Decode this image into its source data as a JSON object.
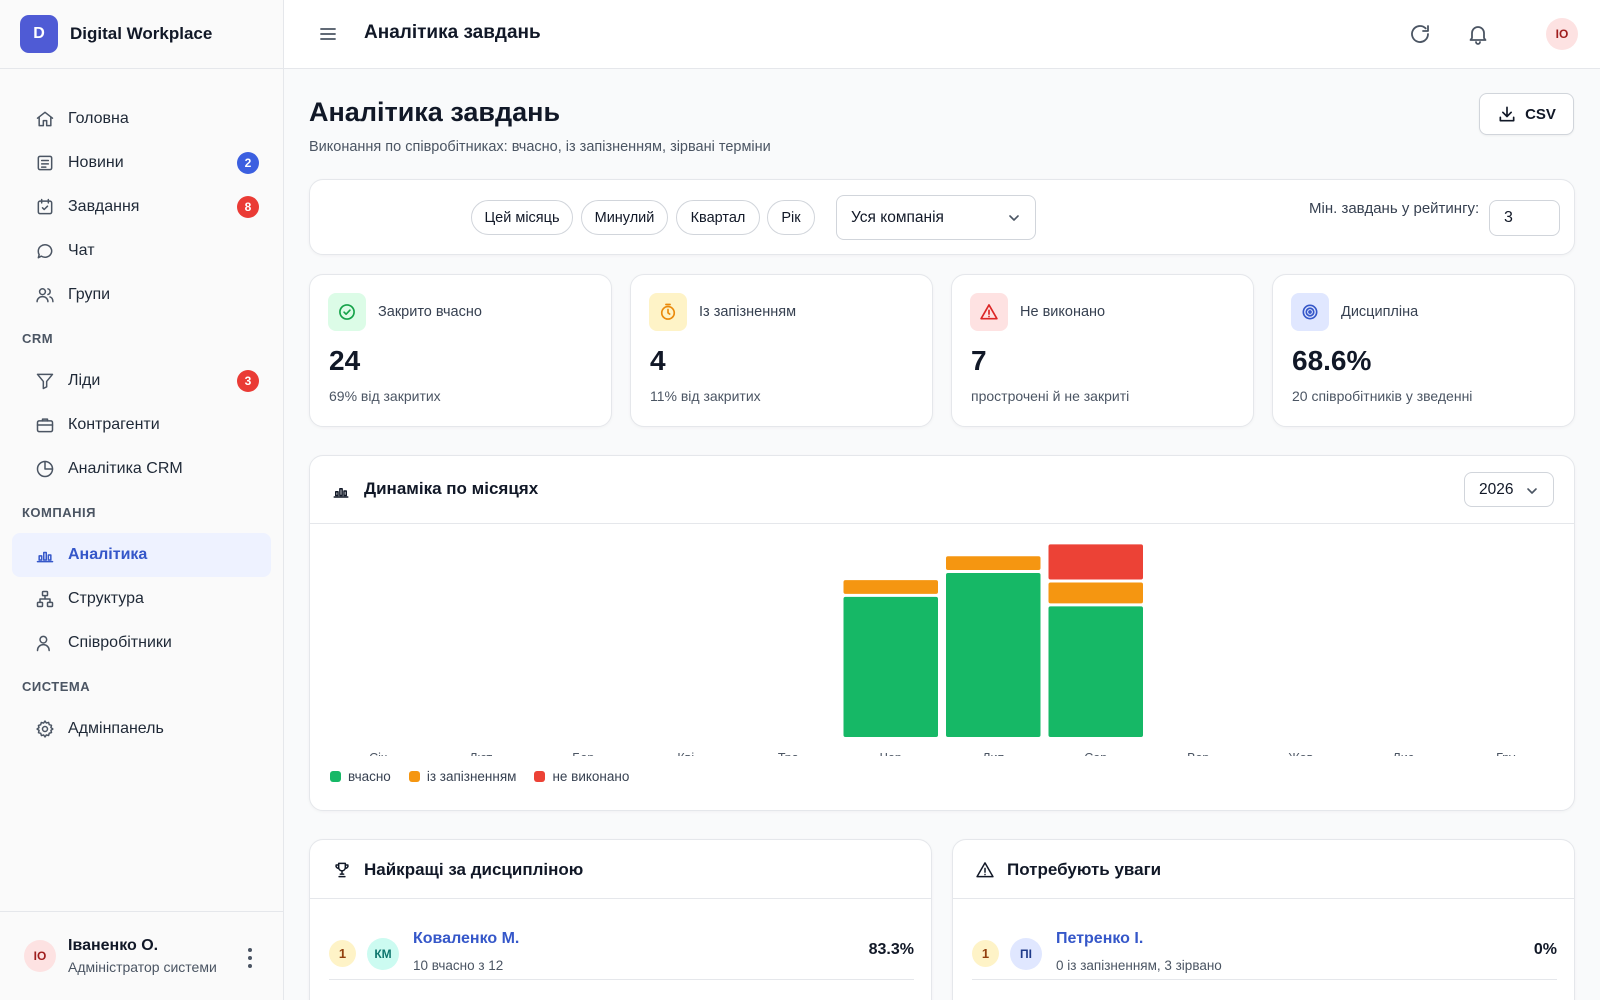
{
  "brand": {
    "logo_letter": "D",
    "name": "Digital Workplace"
  },
  "nav": {
    "main": [
      {
        "label": "Головна",
        "icon": "home-icon"
      },
      {
        "label": "Новини",
        "icon": "newspaper-icon",
        "badge": "2"
      },
      {
        "label": "Завдання",
        "icon": "calendar-check-icon",
        "badge": "8"
      },
      {
        "label": "Чат",
        "icon": "chat-icon"
      },
      {
        "label": "Групи",
        "icon": "users-icon"
      }
    ],
    "crm_section": "CRM",
    "crm": [
      {
        "label": "Ліди",
        "icon": "filter-icon",
        "badge": "3"
      },
      {
        "label": "Контрагенти",
        "icon": "briefcase-icon"
      },
      {
        "label": "Аналітика CRM",
        "icon": "pie-chart-icon"
      }
    ],
    "company_section": "КОМПАНІЯ",
    "company": [
      {
        "label": "Аналітика",
        "icon": "bar-chart-icon",
        "active": true
      },
      {
        "label": "Структура",
        "icon": "org-structure-icon"
      },
      {
        "label": "Співробітники",
        "icon": "user-icon"
      }
    ],
    "system_section": "СИСТЕМА",
    "system": [
      {
        "label": "Адмінпанель",
        "icon": "gear-icon"
      }
    ]
  },
  "user": {
    "initials": "ІО",
    "name": "Іваненко О.",
    "role": "Адміністратор системи"
  },
  "topbar": {
    "title": "Аналітика завдань",
    "avatar_initials": "ІО"
  },
  "page": {
    "title": "Аналітика завдань",
    "subtitle": "Виконання по співробітниках: вчасно, із запізненням, зірвані терміни",
    "csv_label": "CSV"
  },
  "filters": {
    "chips": [
      "Цей місяць",
      "Минулий",
      "Квартал",
      "Рік"
    ],
    "scope_value": "Уся компанія",
    "min_label": "Мін. завдань у рейтингу:",
    "min_value": "3"
  },
  "stats": [
    {
      "label": "Закрито вчасно",
      "value": "24",
      "note": "69% від закритих",
      "icon": "check-circle-icon",
      "color": "#16a34a",
      "bg": "#dcfce7"
    },
    {
      "label": "Із запізненням",
      "value": "4",
      "note": "11% від закритих",
      "icon": "timer-icon",
      "color": "#ea8a0c",
      "bg": "#fef3c7"
    },
    {
      "label": "Не виконано",
      "value": "7",
      "note": "прострочені й не закриті",
      "icon": "warning-icon",
      "color": "#dc2626",
      "bg": "#fee2e2"
    },
    {
      "label": "Дисципліна",
      "value": "68.6%",
      "note": "20 співробітників у зведенні",
      "icon": "target-icon",
      "color": "#3557c9",
      "bg": "#e0e7ff"
    }
  ],
  "chart": {
    "title": "Динаміка по місяцях",
    "year": "2026"
  },
  "chart_data": {
    "type": "bar",
    "stacked": true,
    "categories": [
      "Січ",
      "Лют",
      "Бер",
      "Кві",
      "Тра",
      "Чер",
      "Лип",
      "Сер",
      "Вер",
      "Жов",
      "Лис",
      "Гру"
    ],
    "series": [
      {
        "name": "вчасно",
        "color": "#16b866",
        "values": [
          0,
          0,
          0,
          0,
          0,
          6,
          7,
          5.6,
          0,
          0,
          0,
          0
        ]
      },
      {
        "name": "із запізненням",
        "color": "#f59611",
        "values": [
          0,
          0,
          0,
          0,
          0,
          0.7,
          0.7,
          1,
          0,
          0,
          0,
          0
        ]
      },
      {
        "name": "не виконано",
        "color": "#ec4236",
        "values": [
          0,
          0,
          0,
          0,
          0,
          0,
          0,
          1.6,
          0,
          0,
          0,
          0
        ]
      }
    ],
    "ylim": [
      0,
      8.8
    ],
    "grid": false,
    "legend": "bottom-left"
  },
  "best": {
    "title": "Найкращі за дисципліною",
    "rows": [
      {
        "rank": "1",
        "initials": "КМ",
        "name": "Коваленко М.",
        "sub": "10 вчасно з 12",
        "value": "83.3%"
      }
    ]
  },
  "attention": {
    "title": "Потребують уваги",
    "rows": [
      {
        "rank": "1",
        "initials": "ПІ",
        "name": "Петренко І.",
        "sub": "0 із запізненням, 3 зірвано",
        "value": "0%"
      }
    ]
  }
}
